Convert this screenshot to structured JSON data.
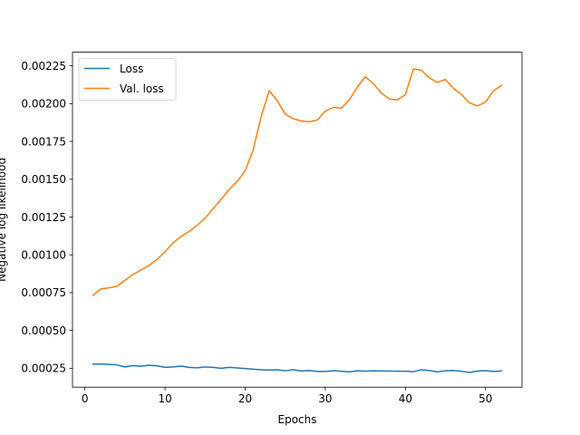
{
  "chart_data": {
    "type": "line",
    "xlabel": "Epochs",
    "ylabel": "Negative log likelihood",
    "xlim": [
      -1.55,
      54.55
    ],
    "ylim": [
      0.000125,
      0.00234
    ],
    "xticks": [
      0,
      10,
      20,
      30,
      40,
      50
    ],
    "yticks": [
      0.00025,
      0.0005,
      0.00075,
      0.001,
      0.00125,
      0.0015,
      0.00175,
      0.002,
      0.00225
    ],
    "ytick_labels": [
      "0.00025",
      "0.00050",
      "0.00075",
      "0.00100",
      "0.00125",
      "0.00150",
      "0.00175",
      "0.00200",
      "0.00225"
    ],
    "grid": false,
    "legend_position": "top-left",
    "x": [
      1,
      2,
      3,
      4,
      5,
      6,
      7,
      8,
      9,
      10,
      11,
      12,
      13,
      14,
      15,
      16,
      17,
      18,
      19,
      20,
      21,
      22,
      23,
      24,
      25,
      26,
      27,
      28,
      29,
      30,
      31,
      32,
      33,
      34,
      35,
      36,
      37,
      38,
      39,
      40,
      41,
      42,
      43,
      44,
      45,
      46,
      47,
      48,
      49,
      50,
      51,
      52
    ],
    "series": [
      {
        "name": "Loss",
        "color": "#1f77b4",
        "values": [
          0.000277,
          0.000278,
          0.000275,
          0.000272,
          0.000259,
          0.000268,
          0.000263,
          0.00027,
          0.000266,
          0.000256,
          0.000259,
          0.000264,
          0.000256,
          0.000253,
          0.000259,
          0.000256,
          0.00025,
          0.000256,
          0.000252,
          0.000248,
          0.000244,
          0.00024,
          0.000238,
          0.00024,
          0.000233,
          0.000241,
          0.000232,
          0.000235,
          0.000229,
          0.000229,
          0.000233,
          0.00023,
          0.000226,
          0.000233,
          0.00023,
          0.000233,
          0.000232,
          0.000232,
          0.00023,
          0.00023,
          0.000227,
          0.00024,
          0.000235,
          0.000226,
          0.000233,
          0.000235,
          0.00023,
          0.000222,
          0.000232,
          0.000234,
          0.000229,
          0.000232
        ]
      },
      {
        "name": "Val. loss",
        "color": "#ff7f0e",
        "values": [
          0.000732,
          0.000775,
          0.000782,
          0.000792,
          0.000832,
          0.00087,
          0.0009,
          0.00093,
          0.00097,
          0.00102,
          0.001078,
          0.001122,
          0.001155,
          0.001195,
          0.001242,
          0.001305,
          0.001368,
          0.001432,
          0.001485,
          0.001555,
          0.001695,
          0.001915,
          0.002085,
          0.00202,
          0.00193,
          0.0019,
          0.001885,
          0.00188,
          0.001892,
          0.00195,
          0.001975,
          0.00197,
          0.002025,
          0.00211,
          0.002178,
          0.002132,
          0.00207,
          0.00203,
          0.002025,
          0.00206,
          0.00223,
          0.00222,
          0.00217,
          0.00214,
          0.00216,
          0.0021,
          0.00206,
          0.002005,
          0.001985,
          0.00201,
          0.002085,
          0.00212
        ]
      }
    ]
  }
}
